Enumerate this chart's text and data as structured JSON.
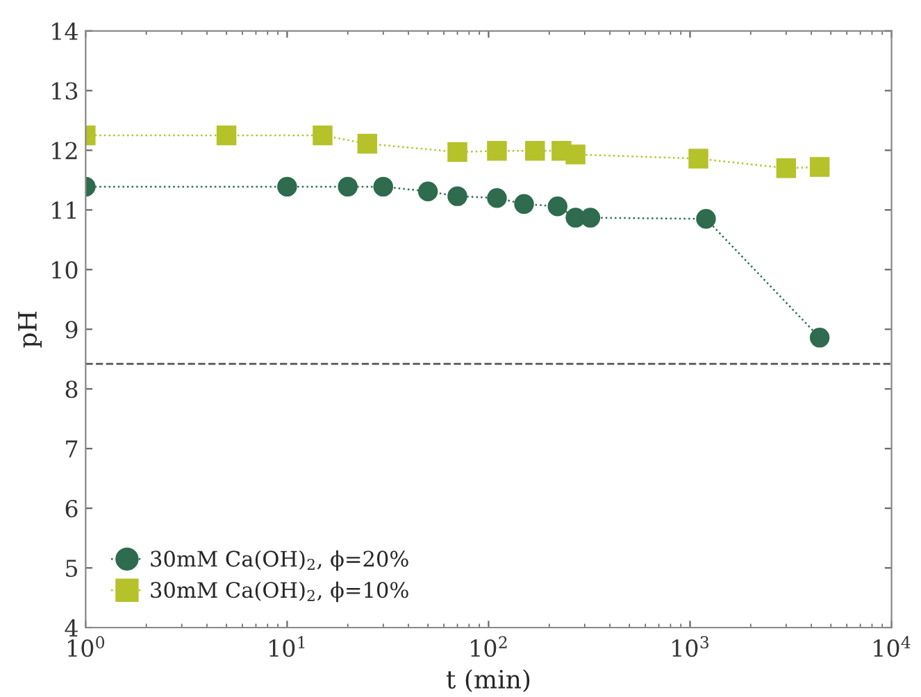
{
  "chart_data": {
    "type": "line",
    "xlabel": "t (min)",
    "ylabel": "pH",
    "log": "x",
    "xlim": [
      1,
      10000
    ],
    "ylim": [
      4,
      14
    ],
    "xticks": [
      {
        "value": 1,
        "label": "10$^{0}$"
      },
      {
        "value": 10,
        "label": "10$^{1}$"
      },
      {
        "value": 100,
        "label": "10$^{2}$"
      },
      {
        "value": 1000,
        "label": "10$^{3}$"
      },
      {
        "value": 10000,
        "label": "10$^{4}$"
      }
    ],
    "yticks": [
      4,
      5,
      6,
      7,
      8,
      9,
      10,
      11,
      12,
      13,
      14
    ],
    "grid": false,
    "legend": "bottom left",
    "line_style": "dotted",
    "ref_lines": [
      {
        "axis": "y",
        "value": 8.42,
        "label": null,
        "color": "#555555",
        "line_style": "dashed"
      }
    ],
    "series": [
      {
        "name": "30mM Ca(OH)$_{2}$, ϕ=20%",
        "color": "#2e6b4f",
        "marker": "circle",
        "x": [
          1,
          10,
          20,
          30,
          50,
          70,
          110,
          150,
          220,
          270,
          320,
          1200,
          4400
        ],
        "values": [
          11.39,
          11.39,
          11.39,
          11.39,
          11.31,
          11.23,
          11.2,
          11.1,
          11.06,
          10.87,
          10.87,
          10.85,
          8.86
        ]
      },
      {
        "name": "30mM Ca(OH)$_{2}$, ϕ=10%",
        "color": "#b5c22a",
        "marker": "square",
        "x": [
          1,
          5,
          15,
          25,
          70,
          110,
          170,
          230,
          270,
          1100,
          3000,
          4400
        ],
        "values": [
          12.25,
          12.25,
          12.25,
          12.11,
          11.97,
          11.99,
          11.99,
          11.99,
          11.93,
          11.86,
          11.7,
          11.72
        ]
      }
    ]
  }
}
